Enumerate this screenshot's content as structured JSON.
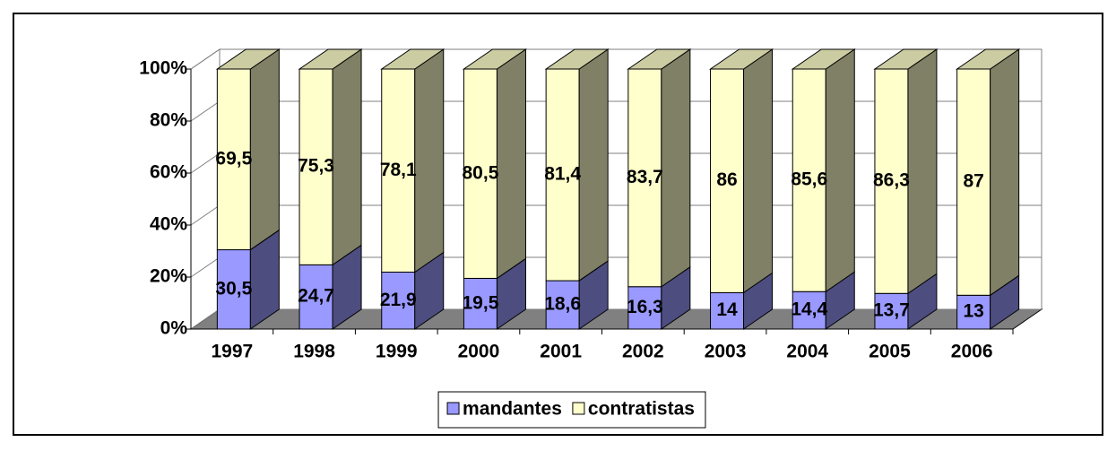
{
  "chart_data": {
    "type": "stacked-bar-3d",
    "categories": [
      "1997",
      "1998",
      "1999",
      "2000",
      "2001",
      "2002",
      "2003",
      "2004",
      "2005",
      "2006"
    ],
    "series": [
      {
        "name": "mandantes",
        "color": "#9999ff",
        "values": [
          30.5,
          24.7,
          21.9,
          19.5,
          18.6,
          16.3,
          14,
          14.4,
          13.7,
          13
        ],
        "value_labels": [
          "30,5",
          "24,7",
          "21,9",
          "19,5",
          "18,6",
          "16,3",
          "14",
          "14,4",
          "13,7",
          "13"
        ]
      },
      {
        "name": "contratistas",
        "color": "#ffffcc",
        "values": [
          69.5,
          75.3,
          78.1,
          80.5,
          81.4,
          83.7,
          86,
          85.6,
          86.3,
          87
        ],
        "value_labels": [
          "69,5",
          "75,3",
          "78,1",
          "80,5",
          "81,4",
          "83,7",
          "86",
          "85,6",
          "86,3",
          "87"
        ]
      }
    ],
    "ylim": [
      0,
      100
    ],
    "yticks": [
      {
        "value": 0,
        "label": "0%"
      },
      {
        "value": 20,
        "label": "20%"
      },
      {
        "value": 40,
        "label": "40%"
      },
      {
        "value": 60,
        "label": "60%"
      },
      {
        "value": 80,
        "label": "80%"
      },
      {
        "value": 100,
        "label": "100%"
      }
    ],
    "grid": true,
    "legend": "bottom"
  }
}
